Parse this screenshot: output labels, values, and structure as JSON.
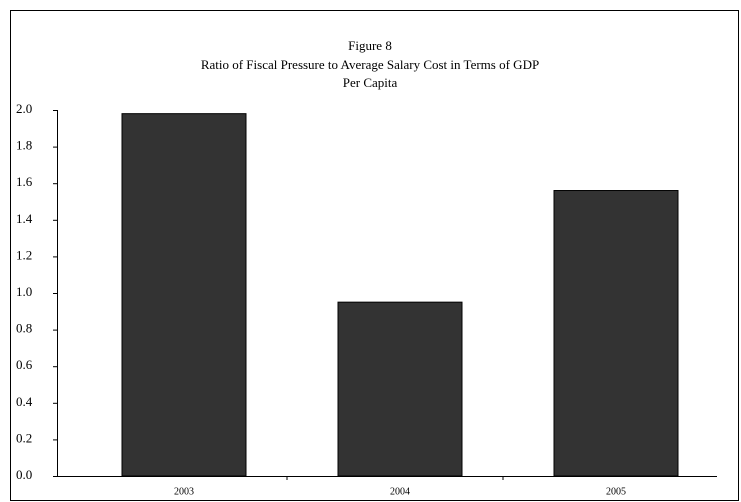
{
  "chart_data": {
    "type": "bar",
    "figure_label": "Figure 8",
    "title": [
      "Ratio of Fiscal Pressure to Average Salary Cost in Terms of GDP",
      "Per Capita"
    ],
    "categories": [
      "2003",
      "2004",
      "2005"
    ],
    "values": [
      1.98,
      0.95,
      1.56
    ],
    "color": "#333333",
    "ylim": [
      0,
      2
    ],
    "yticks": [
      {
        "value": 0,
        "label": "0.0"
      },
      0.2,
      0.4,
      0.6,
      0.8,
      {
        "value": 1,
        "label": "1.0"
      },
      1.2,
      1.4,
      1.6,
      1.8,
      {
        "value": 2,
        "label": "2.0"
      }
    ],
    "grid": false
  }
}
